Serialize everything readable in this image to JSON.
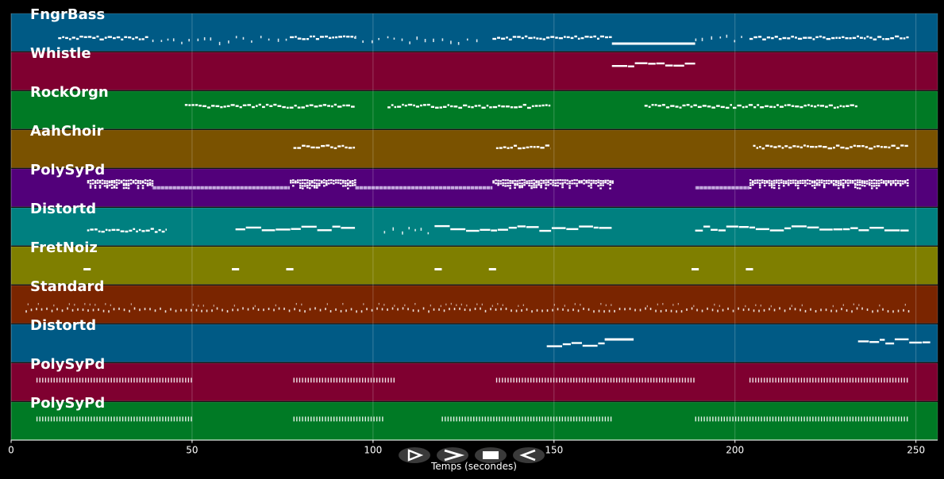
{
  "chart_data": {
    "type": "piano-roll",
    "xlabel": "Temps (secondes)",
    "xlim": [
      0,
      256
    ],
    "x_ticks": [
      0,
      50,
      100,
      150,
      200,
      250
    ],
    "grid": true,
    "tracks": [
      {
        "name": "FngrBass",
        "color": "#005a85",
        "segments": [
          {
            "start": 13,
            "end": 38,
            "style": "notes",
            "level": 0.65
          },
          {
            "start": 39,
            "end": 77,
            "style": "sparse",
            "level": 0.7
          },
          {
            "start": 77,
            "end": 95,
            "style": "notes",
            "level": 0.65
          },
          {
            "start": 95,
            "end": 130,
            "style": "sparse",
            "level": 0.7
          },
          {
            "start": 133,
            "end": 166,
            "style": "notes",
            "level": 0.65
          },
          {
            "start": 166,
            "end": 189,
            "style": "long",
            "level": 0.8
          },
          {
            "start": 189,
            "end": 202,
            "style": "sparse",
            "level": 0.65
          },
          {
            "start": 204,
            "end": 248,
            "style": "notes",
            "level": 0.65
          }
        ]
      },
      {
        "name": "Whistle",
        "color": "#7f0030",
        "segments": [
          {
            "start": 166,
            "end": 189,
            "style": "melody",
            "level": 0.35
          }
        ]
      },
      {
        "name": "RockOrgn",
        "color": "#007a25",
        "segments": [
          {
            "start": 48,
            "end": 95,
            "style": "notes",
            "level": 0.4
          },
          {
            "start": 104,
            "end": 149,
            "style": "notes",
            "level": 0.4
          },
          {
            "start": 175,
            "end": 234,
            "style": "notes",
            "level": 0.4
          }
        ]
      },
      {
        "name": "AahChoir",
        "color": "#7a5200",
        "segments": [
          {
            "start": 78,
            "end": 95,
            "style": "notes",
            "level": 0.45
          },
          {
            "start": 134,
            "end": 149,
            "style": "notes",
            "level": 0.45
          },
          {
            "start": 205,
            "end": 248,
            "style": "notes",
            "level": 0.45
          }
        ]
      },
      {
        "name": "PolySyPd",
        "color": "#52007a",
        "segments": [
          {
            "start": 21,
            "end": 39,
            "style": "chord",
            "level": 0.4
          },
          {
            "start": 39,
            "end": 77,
            "style": "pad",
            "level": 0.5
          },
          {
            "start": 77,
            "end": 95,
            "style": "chord",
            "level": 0.4
          },
          {
            "start": 95,
            "end": 133,
            "style": "pad",
            "level": 0.5
          },
          {
            "start": 133,
            "end": 166,
            "style": "chord",
            "level": 0.4
          },
          {
            "start": 189,
            "end": 204,
            "style": "pad",
            "level": 0.5
          },
          {
            "start": 204,
            "end": 248,
            "style": "chord",
            "level": 0.4
          }
        ]
      },
      {
        "name": "Distortd",
        "color": "#008080",
        "segments": [
          {
            "start": 21,
            "end": 43,
            "style": "notes",
            "level": 0.6
          },
          {
            "start": 62,
            "end": 95,
            "style": "melody",
            "level": 0.55
          },
          {
            "start": 103,
            "end": 117,
            "style": "sparse",
            "level": 0.6
          },
          {
            "start": 117,
            "end": 166,
            "style": "melody",
            "level": 0.55
          },
          {
            "start": 189,
            "end": 248,
            "style": "melody",
            "level": 0.55
          }
        ]
      },
      {
        "name": "FretNoiz",
        "color": "#7f7f00",
        "segments": [
          {
            "start": 20,
            "end": 22,
            "style": "dash",
            "level": 0.6
          },
          {
            "start": 61,
            "end": 63,
            "style": "dash",
            "level": 0.6
          },
          {
            "start": 76,
            "end": 78,
            "style": "dash",
            "level": 0.6
          },
          {
            "start": 117,
            "end": 119,
            "style": "dash",
            "level": 0.6
          },
          {
            "start": 132,
            "end": 134,
            "style": "dash",
            "level": 0.6
          },
          {
            "start": 188,
            "end": 190,
            "style": "dash",
            "level": 0.6
          },
          {
            "start": 203,
            "end": 205,
            "style": "dash",
            "level": 0.6
          }
        ]
      },
      {
        "name": "Standard",
        "color": "#7a2500",
        "segments": [
          {
            "start": 4,
            "end": 248,
            "style": "drums",
            "level": 0.65
          }
        ]
      },
      {
        "name": "Distortd",
        "color": "#005a85",
        "segments": [
          {
            "start": 148,
            "end": 164,
            "style": "melody",
            "level": 0.55
          },
          {
            "start": 164,
            "end": 172,
            "style": "long",
            "level": 0.4
          },
          {
            "start": 234,
            "end": 254,
            "style": "melody",
            "level": 0.45
          }
        ]
      },
      {
        "name": "PolySyPd",
        "color": "#7f0030",
        "segments": [
          {
            "start": 7,
            "end": 50,
            "style": "ticks",
            "level": 0.45
          },
          {
            "start": 78,
            "end": 106,
            "style": "ticks",
            "level": 0.45
          },
          {
            "start": 134,
            "end": 189,
            "style": "ticks",
            "level": 0.45
          },
          {
            "start": 204,
            "end": 248,
            "style": "ticks",
            "level": 0.45
          }
        ]
      },
      {
        "name": "PolySyPd",
        "color": "#007a25",
        "segments": [
          {
            "start": 7,
            "end": 50,
            "style": "ticks",
            "level": 0.45
          },
          {
            "start": 78,
            "end": 103,
            "style": "ticks",
            "level": 0.45
          },
          {
            "start": 119,
            "end": 166,
            "style": "ticks",
            "level": 0.45
          },
          {
            "start": 189,
            "end": 248,
            "style": "ticks",
            "level": 0.45
          }
        ]
      }
    ]
  },
  "controls": [
    {
      "id": "play-button",
      "glyph": "play"
    },
    {
      "id": "fast-forward-button",
      "glyph": "fast-forward"
    },
    {
      "id": "stop-button",
      "glyph": "stop"
    },
    {
      "id": "rewind-button",
      "glyph": "rewind"
    }
  ]
}
